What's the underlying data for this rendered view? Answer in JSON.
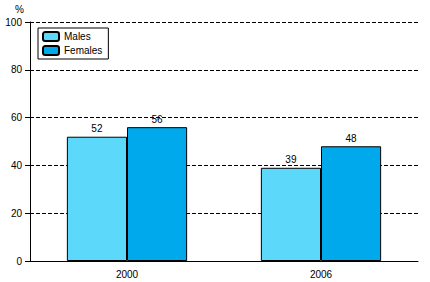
{
  "chart_data": {
    "type": "bar",
    "ylabel": "%",
    "categories": [
      "2000",
      "2006"
    ],
    "series": [
      {
        "name": "Males",
        "color": "#5cd9fa",
        "values": [
          52,
          39
        ]
      },
      {
        "name": "Females",
        "color": "#00a9eb",
        "values": [
          56,
          48
        ]
      }
    ],
    "ylim": [
      0,
      100
    ],
    "yticks": [
      0,
      20,
      40,
      60,
      80,
      100
    ],
    "grid": true,
    "legend": "top-left",
    "data_labels": true
  }
}
